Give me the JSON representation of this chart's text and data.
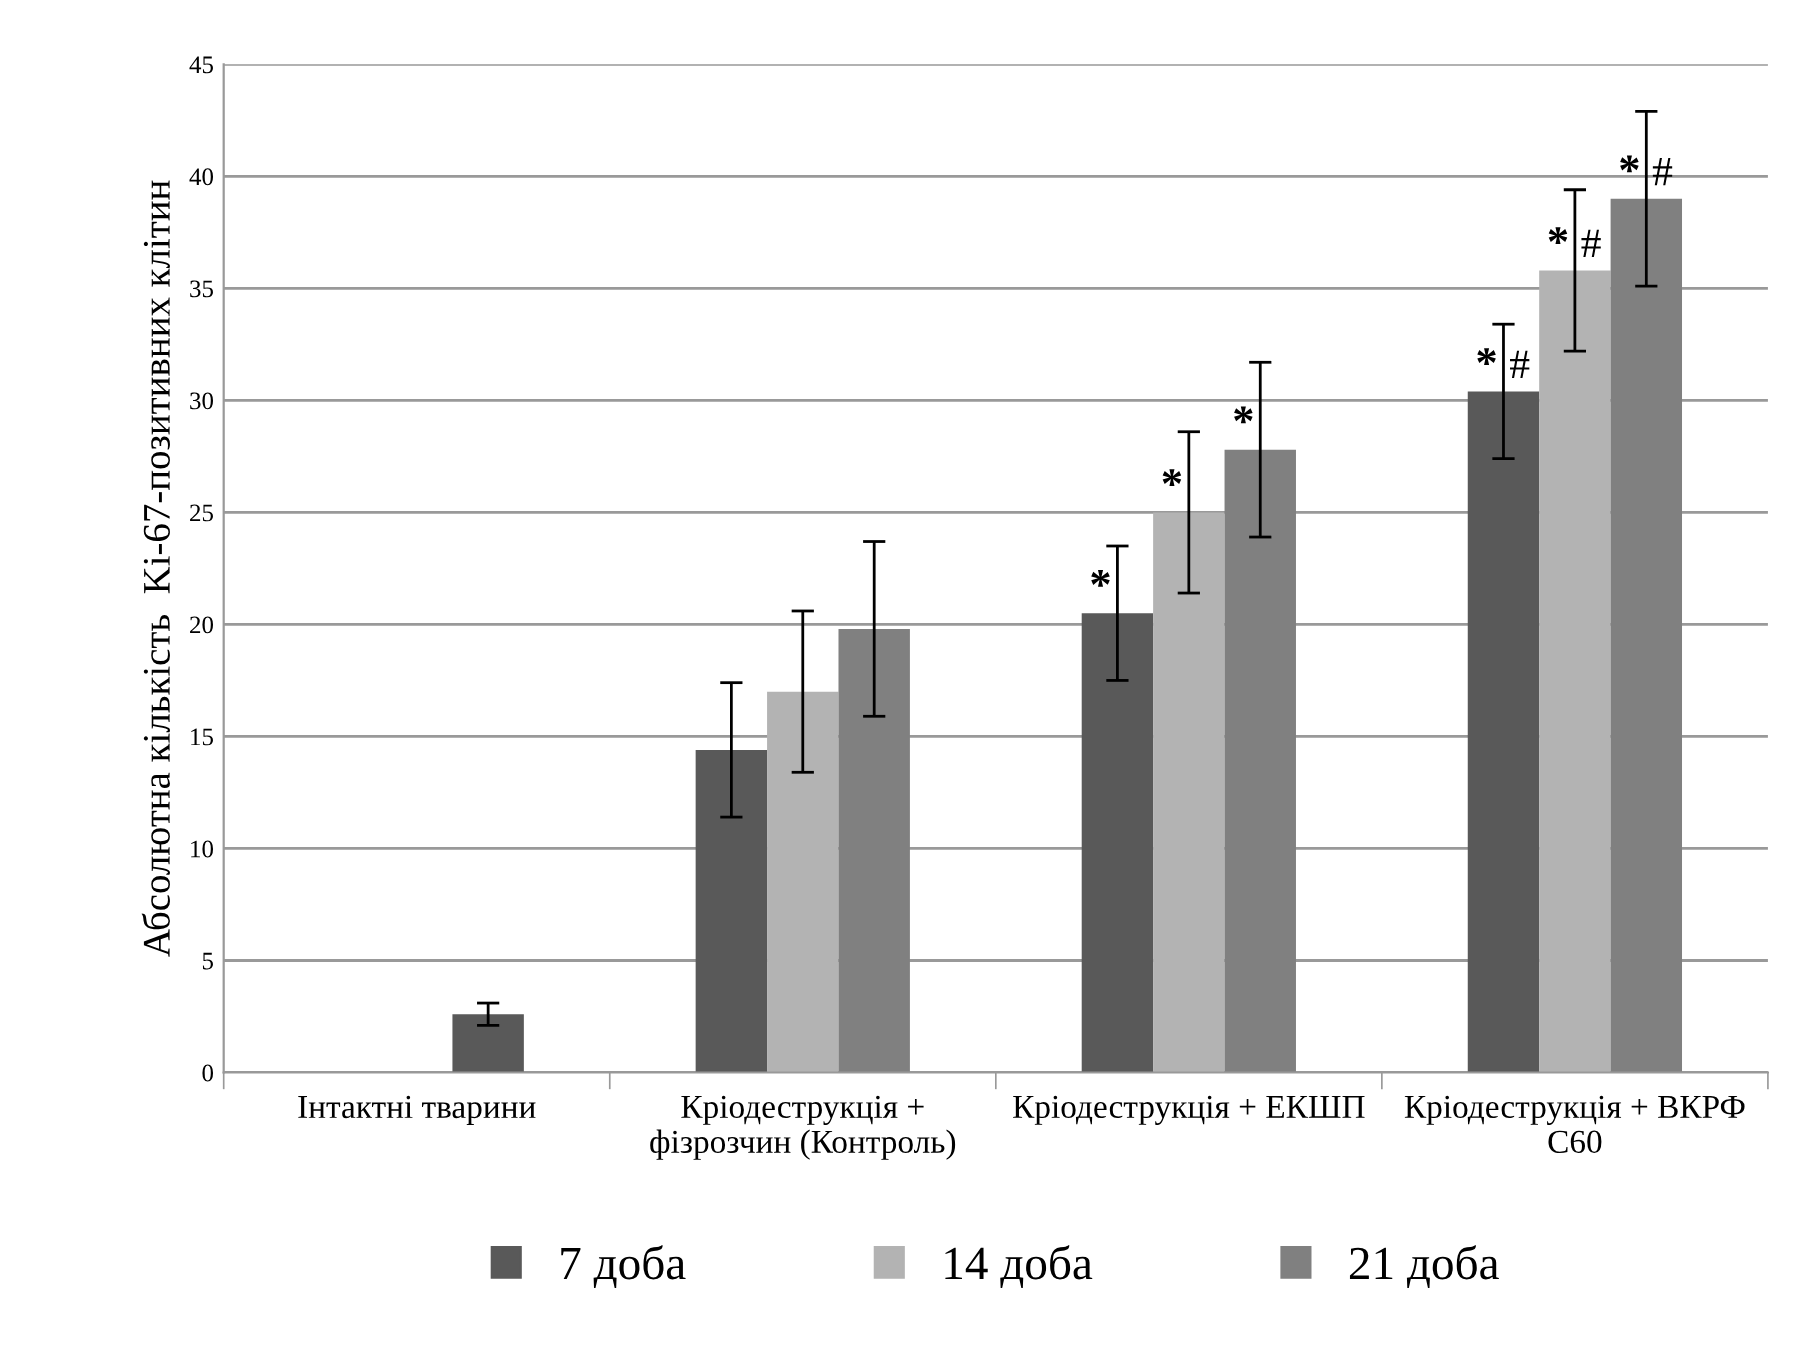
{
  "chart_data": {
    "type": "bar",
    "ylabel": "Абсолютна кількість  Ki-67-позитивних клітин",
    "categories": [
      "Інтактні тварини",
      "Кріодеструкція +\nфізрозчин (Контроль)",
      "Кріодеструкція + ЕКШП",
      "Кріодеструкція + ВКРФ\nС60"
    ],
    "series": [
      {
        "name": "7 доба",
        "color": "#595959",
        "values": [
          null,
          14.4,
          20.5,
          30.4
        ],
        "errors": [
          null,
          3.0,
          3.0,
          3.0
        ]
      },
      {
        "name": "14 доба",
        "color": "#b3b3b3",
        "values": [
          null,
          17.0,
          25.0,
          35.8
        ],
        "errors": [
          null,
          3.6,
          3.6,
          3.6
        ]
      },
      {
        "name": "21 доба",
        "color": "#808080",
        "colors": [
          "#595959",
          "#808080",
          "#808080",
          "#808080"
        ],
        "values": [
          2.6,
          19.8,
          27.8,
          39.0
        ],
        "errors": [
          0.5,
          3.9,
          3.9,
          3.9
        ]
      }
    ],
    "annotations": [
      "*",
      "*",
      "*",
      "* #",
      "* #",
      "* #"
    ],
    "ylim": [
      0,
      45
    ],
    "yticks": [
      0,
      5,
      10,
      15,
      20,
      25,
      30,
      35,
      40,
      45
    ],
    "grid": "y",
    "legend": "bottom"
  }
}
